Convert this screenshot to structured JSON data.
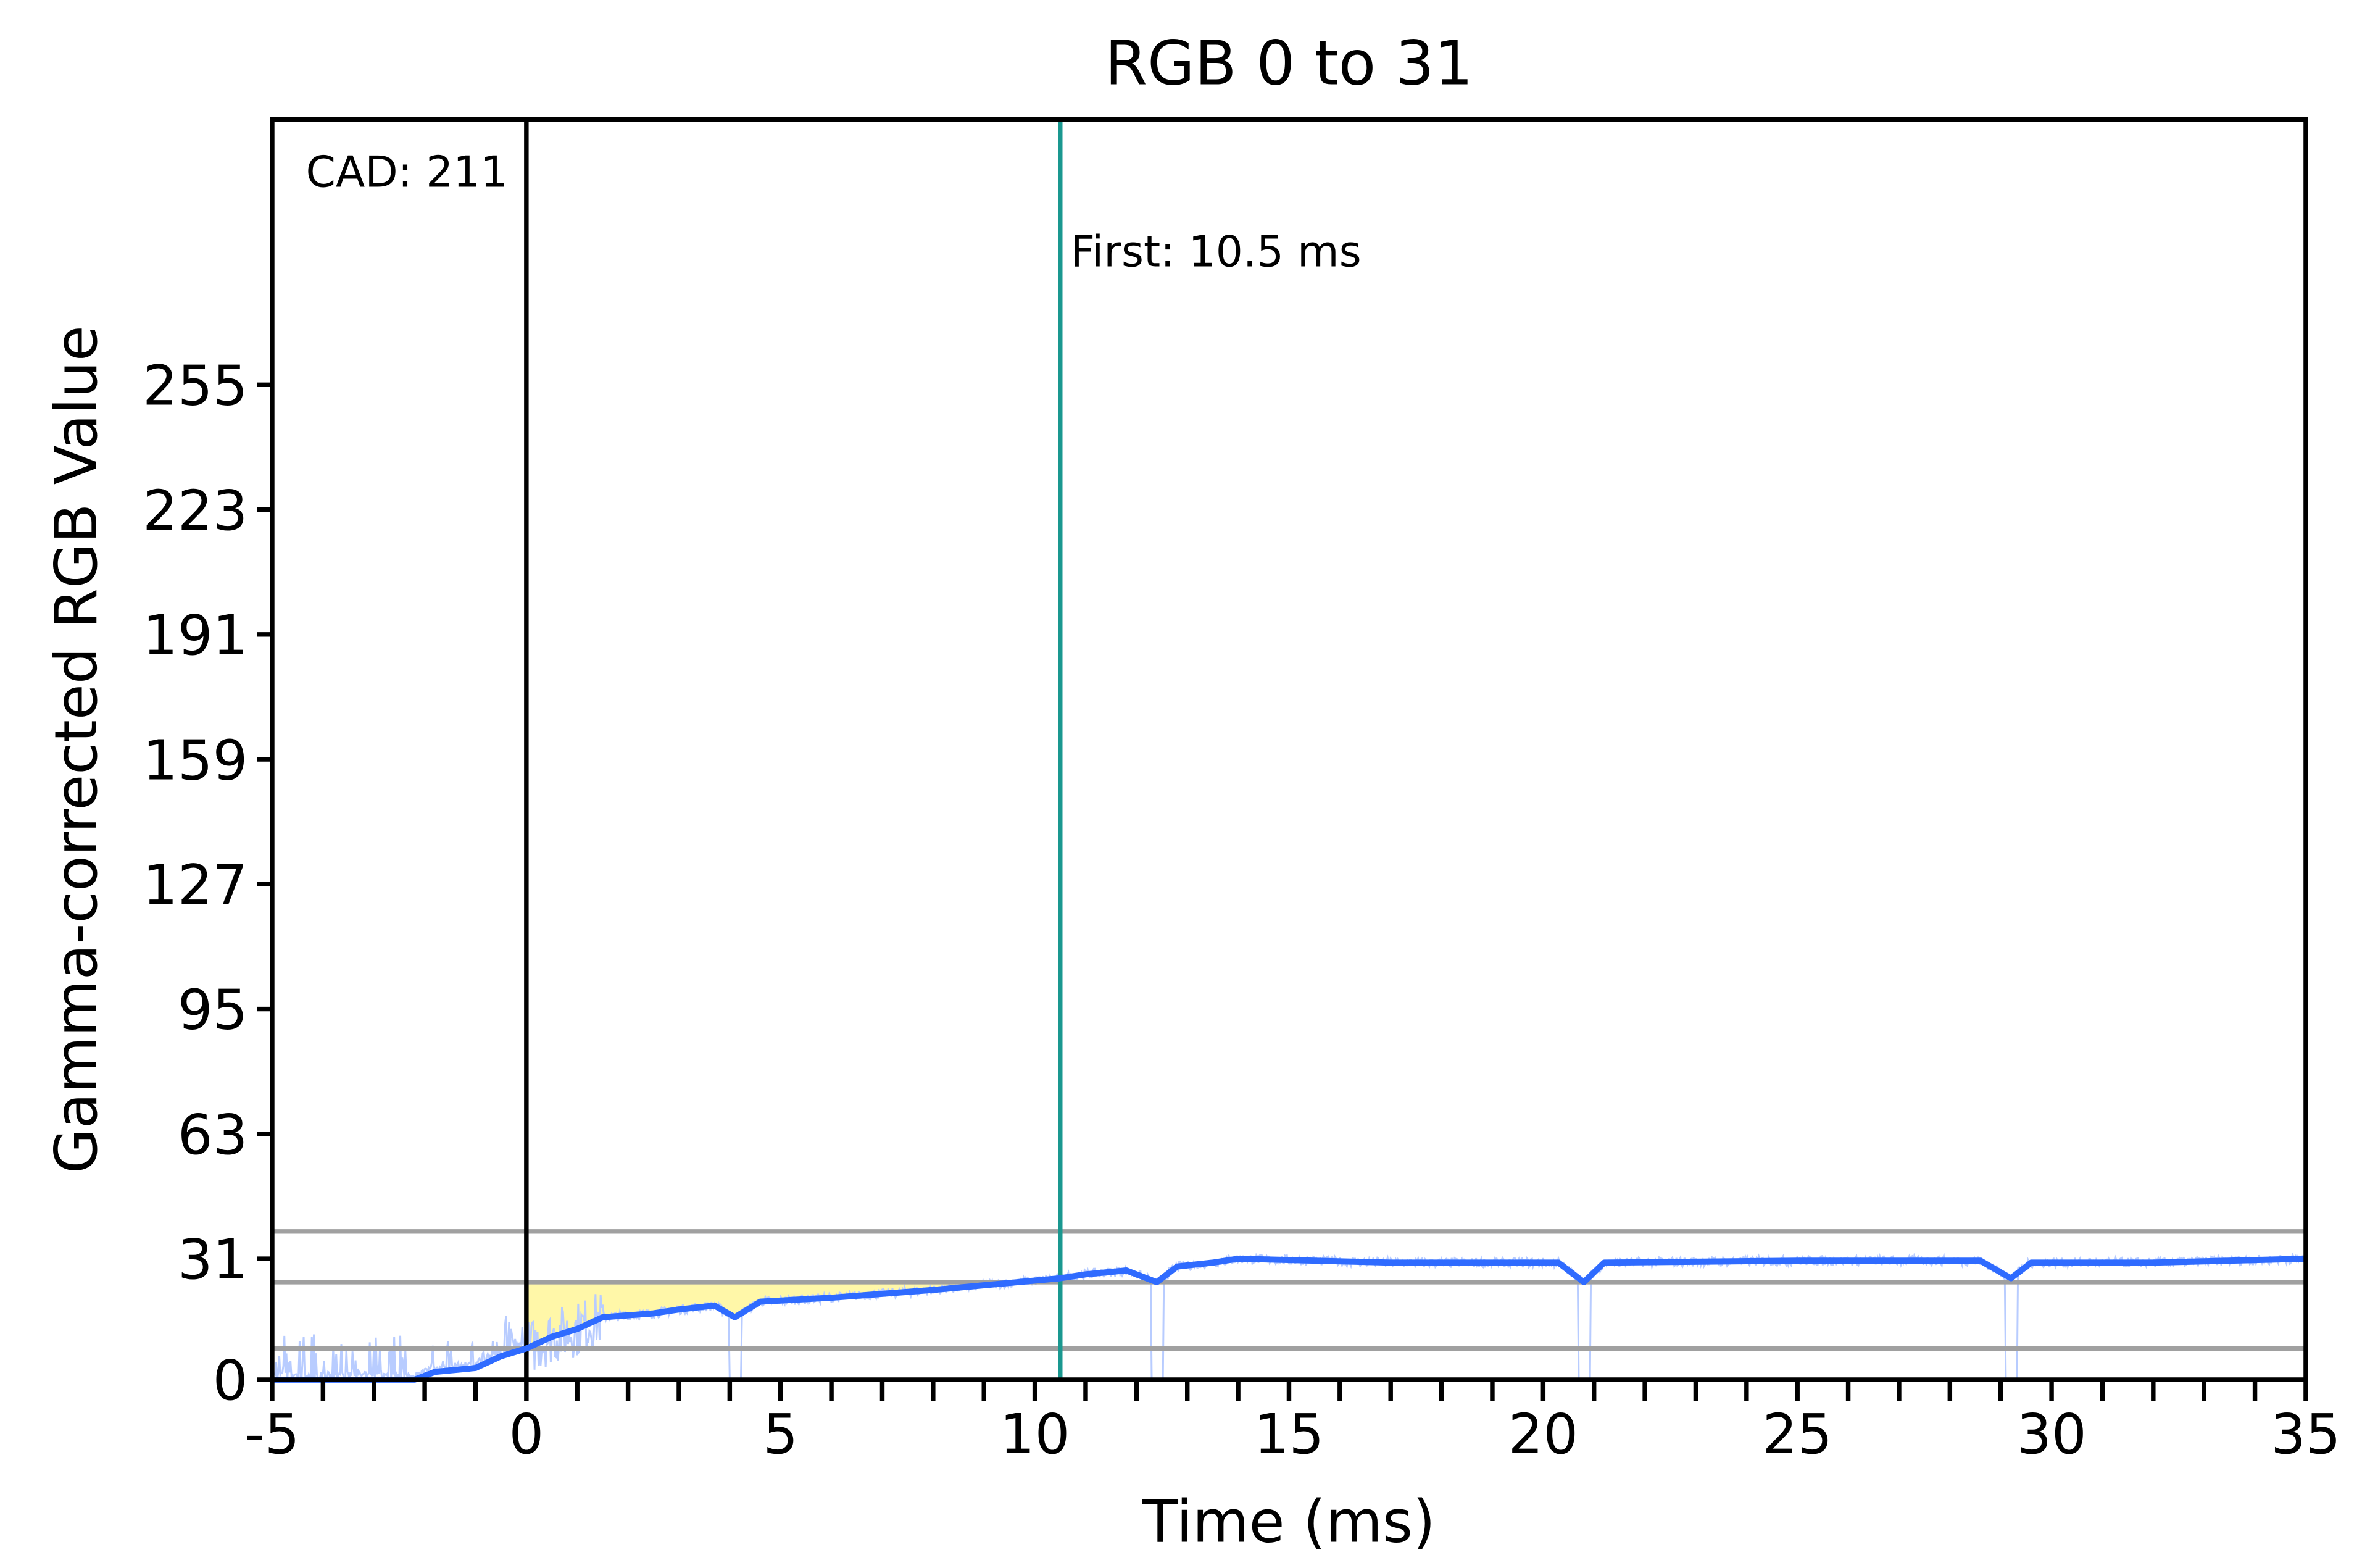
{
  "chart_data": {
    "type": "line",
    "title": "RGB 0 to 31",
    "xlabel": "Time (ms)",
    "ylabel": "Gamma-corrected RGB Value",
    "xlim": [
      -5,
      35
    ],
    "ylim": [
      0,
      323
    ],
    "xticks": [
      -5,
      0,
      5,
      10,
      15,
      20,
      25,
      30,
      35
    ],
    "xtick_labels": [
      "-5",
      "0",
      "5",
      "10",
      "15",
      "20",
      "25",
      "30",
      "35"
    ],
    "yticks": [
      0,
      31,
      63,
      95,
      127,
      159,
      191,
      223,
      255
    ],
    "ytick_labels": [
      "0",
      "31",
      "63",
      "95",
      "127",
      "159",
      "191",
      "223",
      "255"
    ],
    "x_minor_tick_step": 1,
    "grid": false,
    "reference_lines": [
      38,
      25,
      8
    ],
    "cad_marker": {
      "x": 0,
      "label": "CAD: 211"
    },
    "first_marker": {
      "x": 10.5,
      "label": "First: 10.5 ms"
    },
    "fill_region": {
      "x_start": 0,
      "x_end": 10.5,
      "upper_value": 25
    },
    "series": [
      {
        "kind": "smoothed",
        "x": [
          -5,
          -2.2,
          -1.8,
          -1,
          -0.5,
          0,
          0.5,
          1,
          1.5,
          2.5,
          3,
          3.7,
          4.1,
          4.6,
          6,
          8,
          10.5,
          11,
          11.8,
          12.4,
          12.8,
          13.5,
          14,
          17,
          20.3,
          20.8,
          21.2,
          25,
          28.6,
          29.2,
          29.6,
          32,
          35
        ],
        "y": [
          0,
          0,
          2,
          3,
          6,
          8,
          11,
          13,
          16,
          17,
          18,
          19,
          16,
          20,
          21,
          23,
          26,
          27,
          28,
          25,
          29,
          30,
          31,
          30,
          30,
          25,
          30,
          30.5,
          30.5,
          26,
          30,
          30,
          31
        ]
      },
      {
        "kind": "raw",
        "dropouts": [
          4.1,
          12.4,
          20.8,
          29.2
        ]
      }
    ],
    "colors": {
      "smoothed": "#2f6bff",
      "raw": "#b8ccff",
      "fill": "#fff7a8",
      "reference": "#a0a0a0",
      "cad_line": "#000000",
      "first_line": "#1a9890"
    }
  }
}
